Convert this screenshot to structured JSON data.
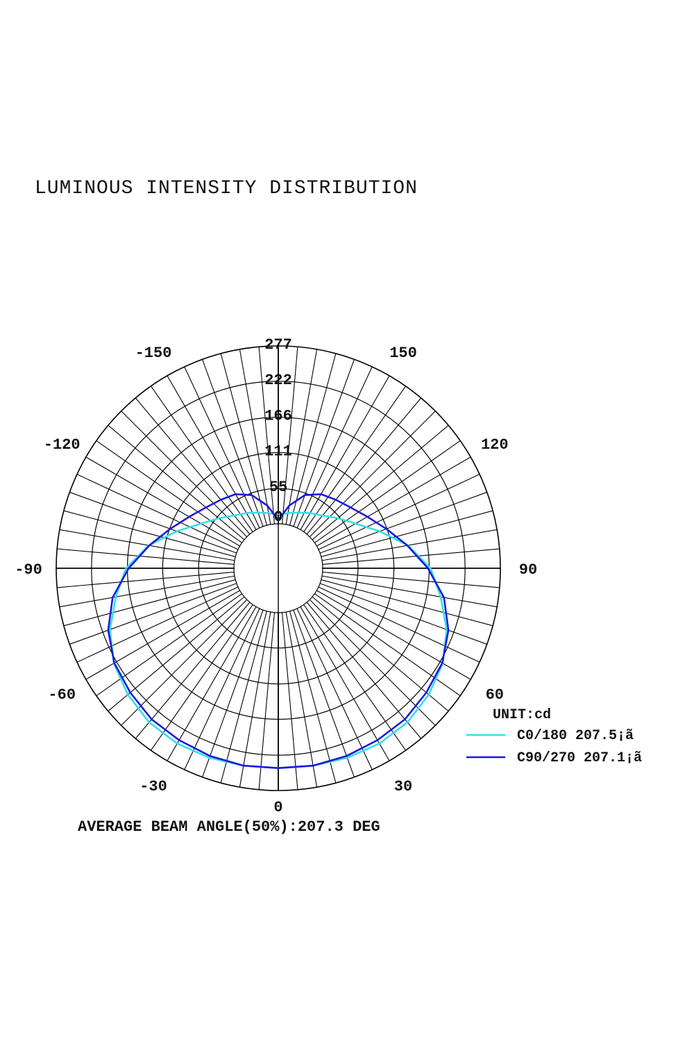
{
  "title": "LUMINOUS INTENSITY DISTRIBUTION",
  "unit_label": "UNIT:cd",
  "footer": "AVERAGE BEAM ANGLE(50%):207.3 DEG",
  "colors": {
    "c0": "#33e0e6",
    "c90": "#1a1adc",
    "grid": "#000000"
  },
  "chart_data": {
    "type": "line",
    "coordinate_system": "polar",
    "unit": "cd",
    "radial_ticks": [
      0,
      55,
      111,
      166,
      222,
      277
    ],
    "radial_tick_labels": [
      "0",
      "55",
      "111",
      "166",
      "222",
      "277"
    ],
    "rmax": 277,
    "angle_labels": [
      "0",
      "30",
      "60",
      "90",
      "120",
      "150",
      "-150",
      "-120",
      "-90",
      "-60",
      "-30"
    ],
    "angle_values": [
      0,
      30,
      60,
      90,
      120,
      150,
      -150,
      -120,
      -90,
      -60,
      -30
    ],
    "spoke_step_deg": 5,
    "legend_placement": "bottom-right",
    "series": [
      {
        "name": "C0/180 207.5¡ã",
        "color": "#33e0e6",
        "angles": [
          0,
          10,
          20,
          30,
          40,
          50,
          60,
          70,
          80,
          90,
          100,
          110,
          120,
          130,
          140,
          150,
          160,
          170,
          180
        ],
        "values": [
          242,
          243,
          245,
          246,
          244,
          237,
          227,
          210,
          188,
          168,
          136,
          99,
          70,
          52,
          38,
          30,
          23,
          18,
          14
        ]
      },
      {
        "name": "C90/270 207.1¡ã",
        "color": "#1a1adc",
        "angles": [
          0,
          10,
          20,
          30,
          40,
          50,
          60,
          70,
          80,
          90,
          100,
          110,
          120,
          130,
          140,
          150,
          160,
          170,
          180
        ],
        "values": [
          242,
          243,
          242,
          240,
          238,
          232,
          226,
          213,
          193,
          164,
          135,
          110,
          91,
          78,
          70,
          64,
          52,
          30,
          6
        ]
      }
    ]
  }
}
